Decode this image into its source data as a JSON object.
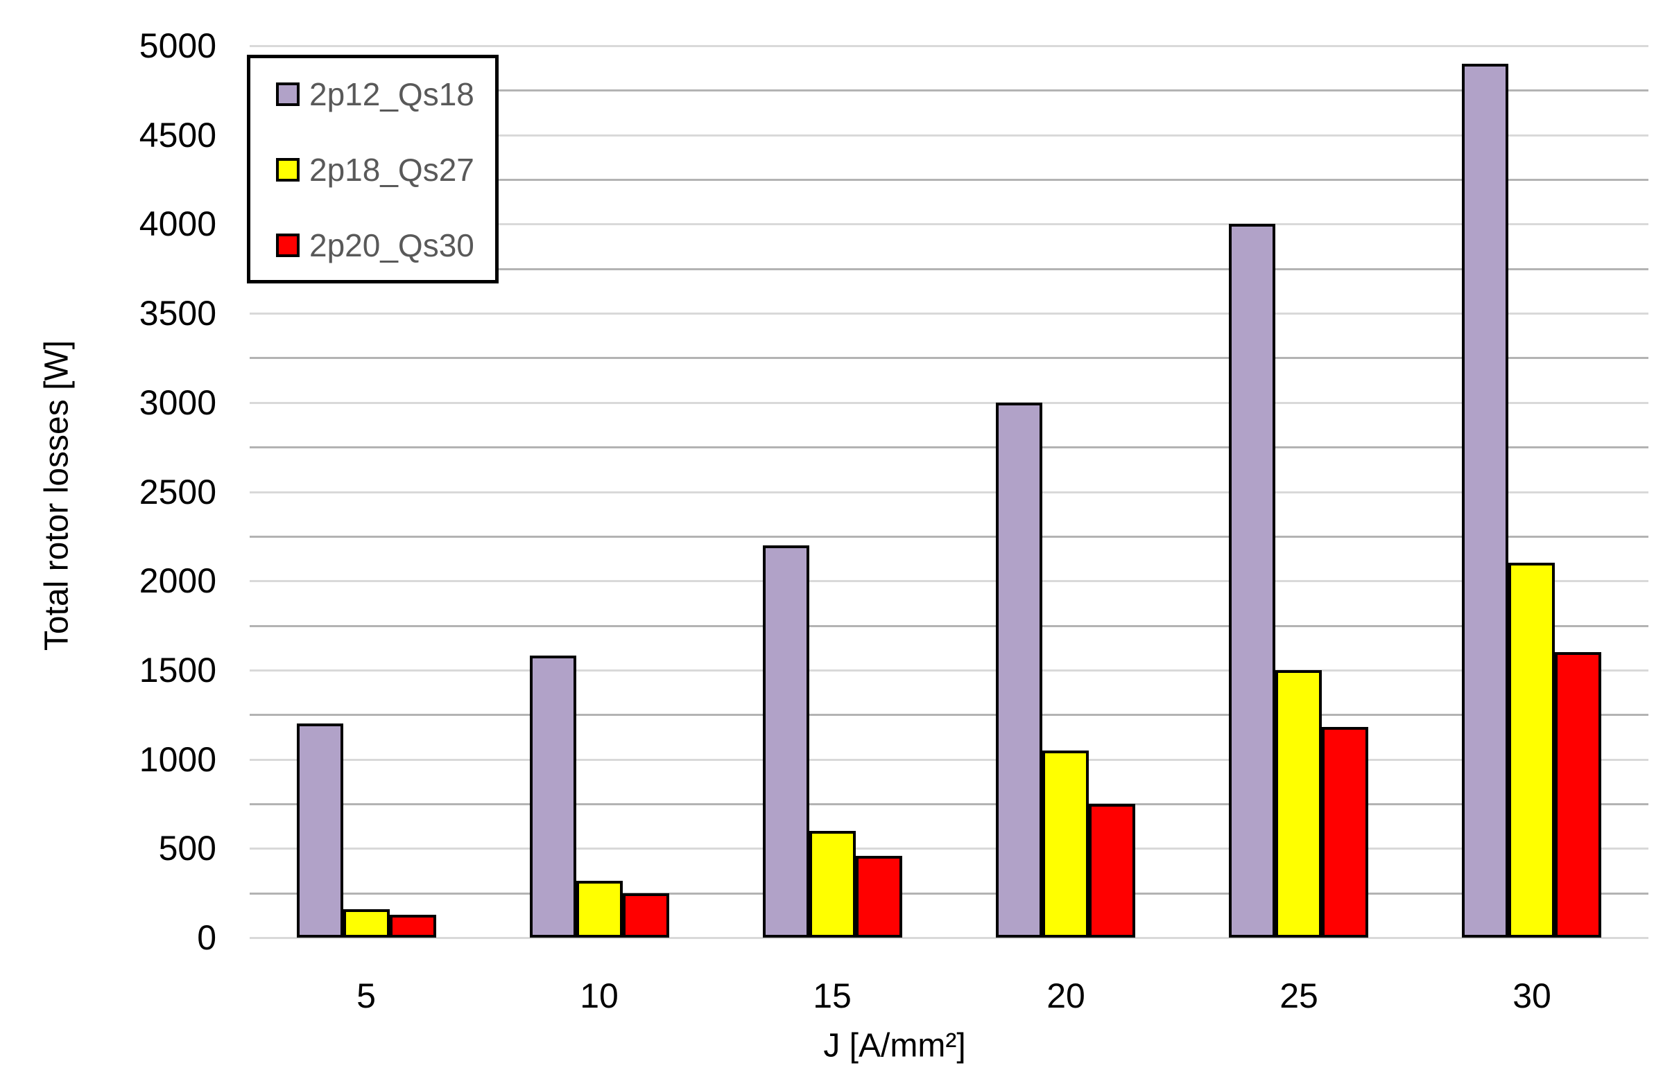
{
  "chart_data": {
    "type": "bar",
    "title": "",
    "categories": [
      "5",
      "10",
      "15",
      "20",
      "25",
      "30"
    ],
    "series": [
      {
        "name": "2p12_Qs18",
        "color": "#b1a2c8",
        "values": [
          1200,
          1580,
          2200,
          3000,
          4000,
          4900
        ]
      },
      {
        "name": "2p18_Qs27",
        "color": "#ffff00",
        "values": [
          160,
          320,
          600,
          1050,
          1500,
          2100
        ]
      },
      {
        "name": "2p20_Qs30",
        "color": "#ff0000",
        "values": [
          130,
          250,
          460,
          750,
          1180,
          1600
        ]
      }
    ],
    "xlabel": "J [A/mm²]",
    "ylabel": "Total rotor losses  [W]",
    "ylim": [
      0,
      5000
    ],
    "ytick_step": 500,
    "gridline_step": 250,
    "grid": true,
    "legend_position": "top-left-inside",
    "colors": {
      "gridline_major": "#d9d9d9",
      "gridline_minor": "#b3b3b3",
      "axis_line": "#d9d9d9",
      "bar_border": "#000000",
      "tick_text": "#000000",
      "legend_text": "#595959",
      "legend_border": "#000000",
      "background": "#ffffff"
    }
  }
}
